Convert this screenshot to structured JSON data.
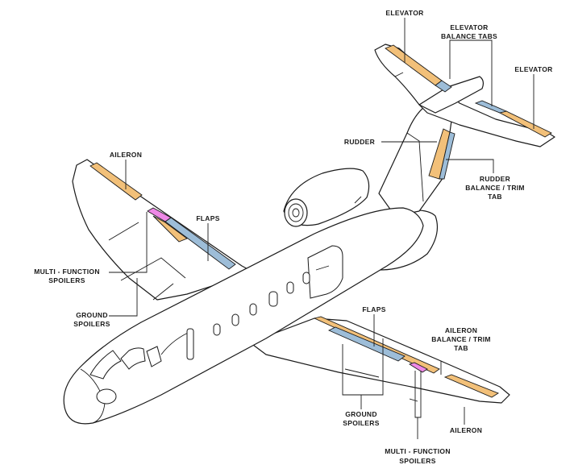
{
  "colors": {
    "orange": "#F2C079",
    "blue": "#9DBDD8",
    "magenta": "#EE88E6",
    "line": "#1a1a1a"
  },
  "labels": {
    "elevator_top": "ELEVATOR",
    "elevator_balance_tabs": [
      "ELEVATOR",
      "BALANCE TABS"
    ],
    "elevator_right": "ELEVATOR",
    "rudder": "RUDDER",
    "rudder_balance_trim_tab": [
      "RUDDER",
      "BALANCE / TRIM",
      "TAB"
    ],
    "aileron_left": "AILERON",
    "flaps_left": "FLAPS",
    "multi_function_spoilers_left": [
      "MULTI - FUNCTION",
      "SPOILERS"
    ],
    "ground_spoilers_left": [
      "GROUND",
      "SPOILERS"
    ],
    "flaps_right": "FLAPS",
    "aileron_balance_trim_tab": [
      "AILERON",
      "BALANCE / TRIM",
      "TAB"
    ],
    "ground_spoilers_right": [
      "GROUND",
      "SPOILERS"
    ],
    "aileron_right": "AILERON",
    "multi_function_spoilers_bottom": [
      "MULTI - FUNCTION",
      "SPOILERS"
    ]
  }
}
